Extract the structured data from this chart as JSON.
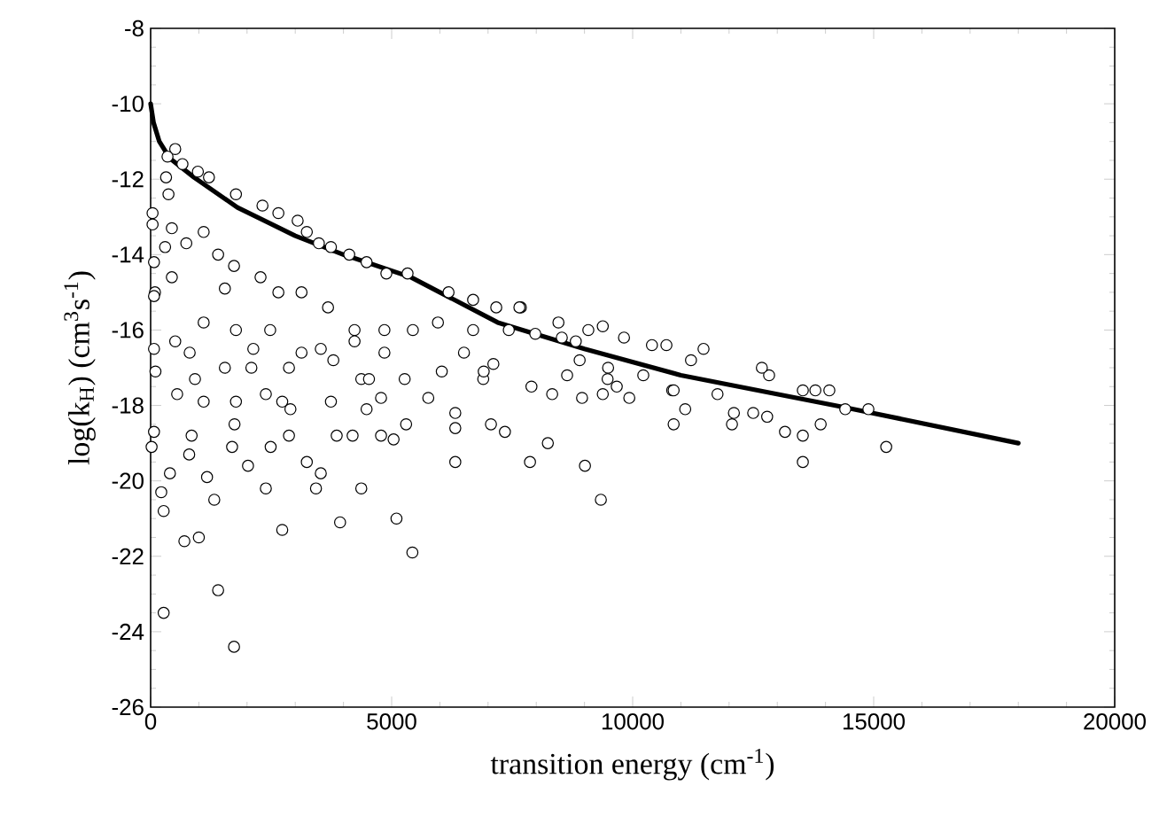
{
  "chart_data": {
    "type": "scatter",
    "xlabel": "transition energy (cm$^{-1}$)",
    "ylabel": "log(k$_{H}$) (cm$^{3}$s$^{-1}$)",
    "xlim": [
      0,
      20000
    ],
    "ylim": [
      -26,
      -8
    ],
    "xticks": [
      0,
      5000,
      10000,
      15000,
      20000
    ],
    "yticks": [
      -26,
      -24,
      -22,
      -20,
      -18,
      -16,
      -14,
      -12,
      -10,
      -8
    ],
    "series": [
      {
        "marker": "circle",
        "color": "#000000",
        "x": [
          1730,
          270,
          1400,
          5430,
          5100,
          2730,
          3930,
          700,
          1000,
          270,
          220,
          400,
          1170,
          1320,
          2390,
          3430,
          3240,
          3530,
          4370,
          2020,
          1690,
          2490,
          2870,
          3860,
          4190,
          4780,
          5040,
          5300,
          6320,
          6320,
          6320,
          7060,
          7350,
          7870,
          8240,
          9010,
          9340,
          10850,
          11090,
          70,
          20,
          100,
          920,
          850,
          800,
          550,
          1100,
          1770,
          1740,
          2730,
          2900,
          2390,
          3740,
          4480,
          4370,
          4530,
          4780,
          5270,
          5760,
          6040,
          6900,
          7110,
          7900,
          8330,
          8950,
          9480,
          9930,
          10820,
          15260,
          13530,
          13900,
          13530,
          13160,
          14890,
          14410,
          14080,
          13790,
          13530,
          12830,
          12680,
          12060,
          12100,
          12500,
          12790,
          11760,
          11470,
          10700,
          10400,
          11210,
          10850,
          10220,
          9670,
          9820,
          9380,
          9080,
          9380,
          8640,
          7680,
          7170,
          8530,
          8900,
          9490,
          510,
          350,
          660,
          980,
          1210,
          320,
          40,
          40,
          370,
          440,
          300,
          70,
          90,
          70,
          70,
          440,
          740,
          1100,
          1770,
          2320,
          2650,
          3050,
          3240,
          3490,
          3740,
          4120,
          4480,
          4890,
          5330,
          6180,
          6690,
          7650,
          8460,
          7980,
          8820,
          1400,
          1730,
          1540,
          2280,
          2650,
          3130,
          3680,
          4230,
          4850,
          5440,
          5960,
          6690,
          7430,
          1100,
          810,
          510,
          1770,
          2130,
          2480,
          3130,
          2870,
          3530,
          3790,
          4230,
          4850,
          6500,
          6910,
          2090,
          1540
        ],
        "values": [
          -24.4,
          -23.5,
          -22.9,
          -21.9,
          -21.0,
          -21.3,
          -21.1,
          -21.6,
          -21.5,
          -20.8,
          -20.3,
          -19.8,
          -19.9,
          -20.5,
          -20.2,
          -20.2,
          -19.5,
          -19.8,
          -20.2,
          -19.6,
          -19.1,
          -19.1,
          -18.8,
          -18.8,
          -18.8,
          -18.8,
          -18.9,
          -18.5,
          -19.5,
          -18.6,
          -18.2,
          -18.5,
          -18.7,
          -19.5,
          -19.0,
          -19.6,
          -20.5,
          -18.5,
          -18.1,
          -18.7,
          -19.1,
          -17.1,
          -17.3,
          -18.8,
          -19.3,
          -17.7,
          -17.9,
          -17.9,
          -18.5,
          -17.9,
          -18.1,
          -17.7,
          -17.9,
          -18.1,
          -17.3,
          -17.3,
          -17.8,
          -17.3,
          -17.8,
          -17.1,
          -17.3,
          -16.9,
          -17.5,
          -17.7,
          -17.8,
          -17.3,
          -17.8,
          -17.6,
          -19.1,
          -19.5,
          -18.5,
          -18.8,
          -18.7,
          -18.1,
          -18.1,
          -17.6,
          -17.6,
          -17.6,
          -17.2,
          -17.0,
          -18.5,
          -18.2,
          -18.2,
          -18.3,
          -17.7,
          -16.5,
          -16.4,
          -16.4,
          -16.8,
          -17.6,
          -17.2,
          -17.5,
          -16.2,
          -15.9,
          -16.0,
          -17.7,
          -17.2,
          -15.4,
          -15.4,
          -16.2,
          -16.8,
          -17.0,
          -11.2,
          -11.4,
          -11.6,
          -11.8,
          -11.95,
          -11.95,
          -12.9,
          -13.2,
          -12.4,
          -13.3,
          -13.8,
          -14.2,
          -15.0,
          -15.1,
          -16.5,
          -14.6,
          -13.7,
          -13.4,
          -12.4,
          -12.7,
          -12.9,
          -13.1,
          -13.4,
          -13.7,
          -13.8,
          -14.0,
          -14.2,
          -14.5,
          -14.5,
          -15.0,
          -15.2,
          -15.4,
          -15.8,
          -16.1,
          -16.3,
          -14.0,
          -14.3,
          -14.9,
          -14.6,
          -15.0,
          -15.0,
          -15.4,
          -16.0,
          -16.0,
          -16.0,
          -15.8,
          -16.0,
          -16.0,
          -15.8,
          -16.6,
          -16.3,
          -16.0,
          -16.5,
          -16.0,
          -16.6,
          -17.0,
          -16.5,
          -16.8,
          -16.3,
          -16.6,
          -16.6,
          -17.1,
          -17.0,
          -17.0
        ]
      },
      {
        "type": "line",
        "marker": "none",
        "color": "#000000",
        "x": [
          0,
          60,
          180,
          400,
          900,
          1800,
          3000,
          4000,
          5400,
          7200,
          9000,
          11000,
          14400,
          18000
        ],
        "values": [
          -10.0,
          -10.5,
          -11.0,
          -11.45,
          -11.95,
          -12.75,
          -13.5,
          -14.0,
          -14.6,
          -15.8,
          -16.5,
          -17.2,
          -18.05,
          -19.0
        ]
      }
    ]
  }
}
